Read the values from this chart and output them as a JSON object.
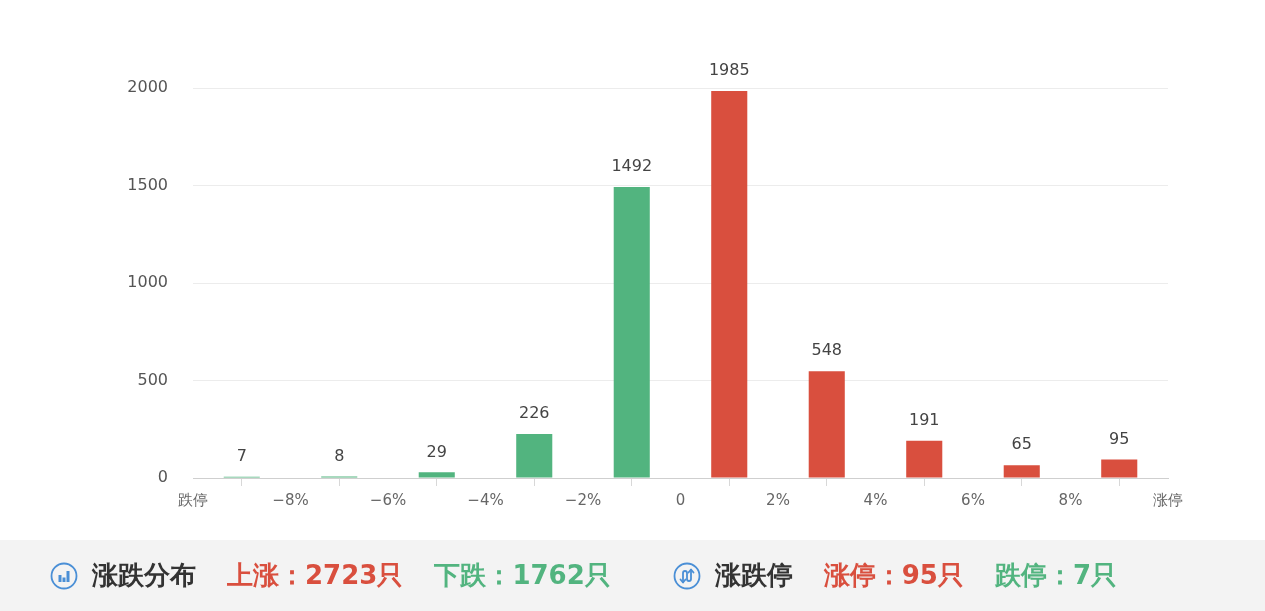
{
  "chart_data": {
    "type": "histogram",
    "bins": [
      -10,
      -8,
      -6,
      -4,
      -2,
      0,
      2,
      4,
      6,
      8,
      10
    ],
    "values": [
      7,
      8,
      29,
      226,
      1492,
      1985,
      548,
      191,
      65,
      95
    ],
    "colors": [
      "#52b47f",
      "#52b47f",
      "#52b47f",
      "#52b47f",
      "#52b47f",
      "#d94f3e",
      "#d94f3e",
      "#d94f3e",
      "#d94f3e",
      "#d94f3e"
    ],
    "xlim": [
      -10,
      10
    ],
    "xticks": [
      {
        "value": -10,
        "label": "跌停"
      },
      {
        "value": -8,
        "label": "−8%"
      },
      {
        "value": -6,
        "label": "−6%"
      },
      {
        "value": -4,
        "label": "−4%"
      },
      {
        "value": -2,
        "label": "−2%"
      },
      0,
      {
        "value": 2,
        "label": "2%"
      },
      {
        "value": 4,
        "label": "4%"
      },
      {
        "value": 6,
        "label": "6%"
      },
      {
        "value": 8,
        "label": "8%"
      },
      {
        "value": 10,
        "label": "涨停"
      }
    ],
    "ylim": [
      0,
      2000
    ],
    "yticks": [
      0,
      500,
      1000,
      1500,
      2000
    ],
    "grid": "y",
    "data_labels": true,
    "annotations": [
      "涨跌分布",
      "上涨：2723只",
      "下跌：1762只",
      "涨跌停",
      "涨停：95只",
      "跌停：7只"
    ]
  }
}
